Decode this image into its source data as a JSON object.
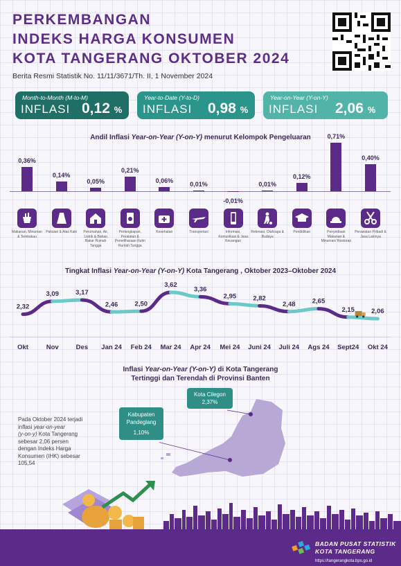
{
  "header": {
    "title_line1": "PERKEMBANGAN",
    "title_line2": "INDEKS HARGA KONSUMEN",
    "title_line3": "KOTA TANGERANG OKTOBER 2024",
    "subtitle": "Berita Resmi Statistik No. 11/11/3671/Th. II, 1 November 2024"
  },
  "cards": [
    {
      "label": "Month-to-Month (M-to-M)",
      "prefix": "INFLASI",
      "value": "0,12",
      "unit": "%",
      "color": "#1f6f67"
    },
    {
      "label": "Year-to-Date (Y-to-D)",
      "prefix": "INFLASI",
      "value": "0,98",
      "unit": "%",
      "color": "#2c958b"
    },
    {
      "label": "Year-on-Year (Y-on-Y)",
      "prefix": "INFLASI",
      "value": "2,06",
      "unit": "%",
      "color": "#52b3a9"
    }
  ],
  "andil": {
    "title_prefix": "Andil Inflasi ",
    "title_italic": "Year-on-Year (Y-on-Y)",
    "title_suffix": " menurut Kelompok Pengeluaran",
    "chart_data": {
      "type": "bar",
      "categories": [
        "Makanan, Minuman & Tembakau",
        "Pakaian & Alas Kaki",
        "Perumahan, Air, Listrik & Bahan Bakar Rumah Tangga",
        "Perlengkapan, Peralatan & Pemeliharaan Rutin Rumah Tangga",
        "Kesehatan",
        "Transportasi",
        "Informasi, Komunikasi & Jasa Keuangan",
        "Rekreasi, Olahraga & Budaya",
        "Pendidikan",
        "Penyediaan Makanan & Minuman/ Restoran",
        "Perawatan Pribadi & Jasa Lainnya"
      ],
      "values": [
        0.36,
        0.14,
        0.05,
        0.21,
        0.06,
        0.01,
        -0.01,
        0.01,
        0.12,
        0.71,
        0.4
      ],
      "labels": [
        "0,36%",
        "0,14%",
        "0,05%",
        "0,21%",
        "0,06%",
        "0,01%",
        "-0,01%",
        "0,01%",
        "0,12%",
        "0,71%",
        "0,40%"
      ],
      "bar_color": "#5c2b8a"
    },
    "icons": [
      "food-icon",
      "dress-icon",
      "house-icon",
      "appliance-icon",
      "medical-kit-icon",
      "airplane-icon",
      "smartphone-icon",
      "football-player-icon",
      "graduation-cap-icon",
      "restaurant-icon",
      "scissors-icon"
    ]
  },
  "trend": {
    "title_prefix": "Tingkat Inflasi ",
    "title_italic": "Year-on-Year (Y-on-Y)",
    "title_suffix": " Kota Tangerang , Oktober 2023–Oktober 2024",
    "chart_data": {
      "type": "line",
      "x": [
        "Okt",
        "Nov",
        "Des",
        "Jan 24",
        "Feb 24",
        "Mar 24",
        "Apr 24",
        "Mei 24",
        "Juni 24",
        "Juli 24",
        "Ags 24",
        "Sept24",
        "Okt 24"
      ],
      "values": [
        2.32,
        3.09,
        3.17,
        2.46,
        2.5,
        3.62,
        3.36,
        2.95,
        2.82,
        2.48,
        2.65,
        2.15,
        2.06
      ],
      "labels": [
        "2,32",
        "3,09",
        "3,17",
        "2,46",
        "2,50",
        "3,62",
        "3,36",
        "2,95",
        "2,82",
        "2,48",
        "2,65",
        "2,15",
        "2,06"
      ],
      "colors": [
        "#5c2b8a",
        "#6cc9c9"
      ]
    }
  },
  "map": {
    "title_line1_prefix": "Inflasi ",
    "title_line1_italic": "Year-on-Year (Y-on-Y)",
    "title_line1_suffix": " di Kota Tangerang",
    "title_line2": "Tertinggi dan Terendah di Provinsi Banten",
    "highest": {
      "name": "Kota Cilegon",
      "value": "2,37%"
    },
    "lowest": {
      "name_line1": "Kabupaten",
      "name_line2": "Pandeglang",
      "value": "1,10%"
    },
    "pin_color": "#2f8f86",
    "region_color": "#b7a8d6"
  },
  "note": {
    "line1": "Pada Oktober 2024 terjadi",
    "line2": "inflasi ",
    "line2_italic": "year-on-year",
    "line3_italic": "(y-on-y)",
    "line3": " Kota Tangerang",
    "line4": "sebesar 2,06 persen",
    "line5": "dengan Indeks Harga",
    "line6": "Konsumen (IHK) sebesar",
    "line7": "105,54"
  },
  "footer": {
    "org_line1": "BADAN PUSAT STATISTIK",
    "org_line2": "KOTA TANGERANG",
    "url": "https://tangerangkota.bps.go.id"
  }
}
